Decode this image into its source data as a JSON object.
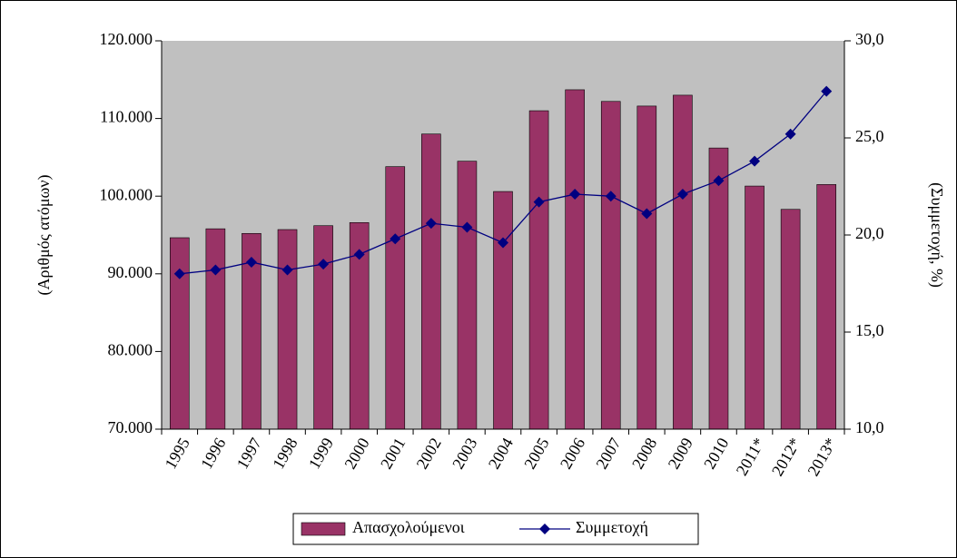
{
  "chart_data": {
    "type": "bar_line",
    "categories": [
      "1995",
      "1996",
      "1997",
      "1998",
      "1999",
      "2000",
      "2001",
      "2002",
      "2003",
      "2004",
      "2005",
      "2006",
      "2007",
      "2008",
      "2009",
      "2010",
      "2011*",
      "2012*",
      "2013*"
    ],
    "y_label": "(Αριθμός ατόμων)",
    "y2_label": "(Συμμετοχή, %)",
    "series": [
      {
        "name": "Απασχολούμενοι",
        "type": "bar",
        "color": "#993366",
        "values": [
          94650,
          95800,
          95200,
          95700,
          96200,
          96600,
          103800,
          108000,
          104500,
          100600,
          111000,
          113700,
          112200,
          111600,
          113000,
          106200,
          101300,
          98300,
          101500
        ]
      },
      {
        "name": "Συμμετοχή",
        "type": "line",
        "axis": "y2",
        "color": "#000080",
        "values": [
          18.0,
          18.2,
          18.6,
          18.2,
          18.5,
          19.0,
          19.8,
          20.6,
          20.4,
          19.6,
          21.7,
          22.1,
          22.0,
          21.1,
          22.1,
          22.8,
          23.8,
          25.2,
          27.4
        ]
      }
    ],
    "ylim": [
      70000,
      120000
    ],
    "yticks": [
      {
        "value": 70000,
        "label": "70.000"
      },
      {
        "value": 80000,
        "label": "80.000"
      },
      {
        "value": 90000,
        "label": "90.000"
      },
      {
        "value": 100000,
        "label": "100.000"
      },
      {
        "value": 110000,
        "label": "110.000"
      },
      {
        "value": 120000,
        "label": "120.000"
      }
    ],
    "y2lim": [
      10,
      30
    ],
    "y2ticks": [
      {
        "value": 10,
        "label": "10,0"
      },
      {
        "value": 15,
        "label": "15,0"
      },
      {
        "value": 20,
        "label": "20,0"
      },
      {
        "value": 25,
        "label": "25,0"
      },
      {
        "value": 30,
        "label": "30,0"
      }
    ],
    "plot_background": "#c0c0c0",
    "legend": "bottom"
  }
}
